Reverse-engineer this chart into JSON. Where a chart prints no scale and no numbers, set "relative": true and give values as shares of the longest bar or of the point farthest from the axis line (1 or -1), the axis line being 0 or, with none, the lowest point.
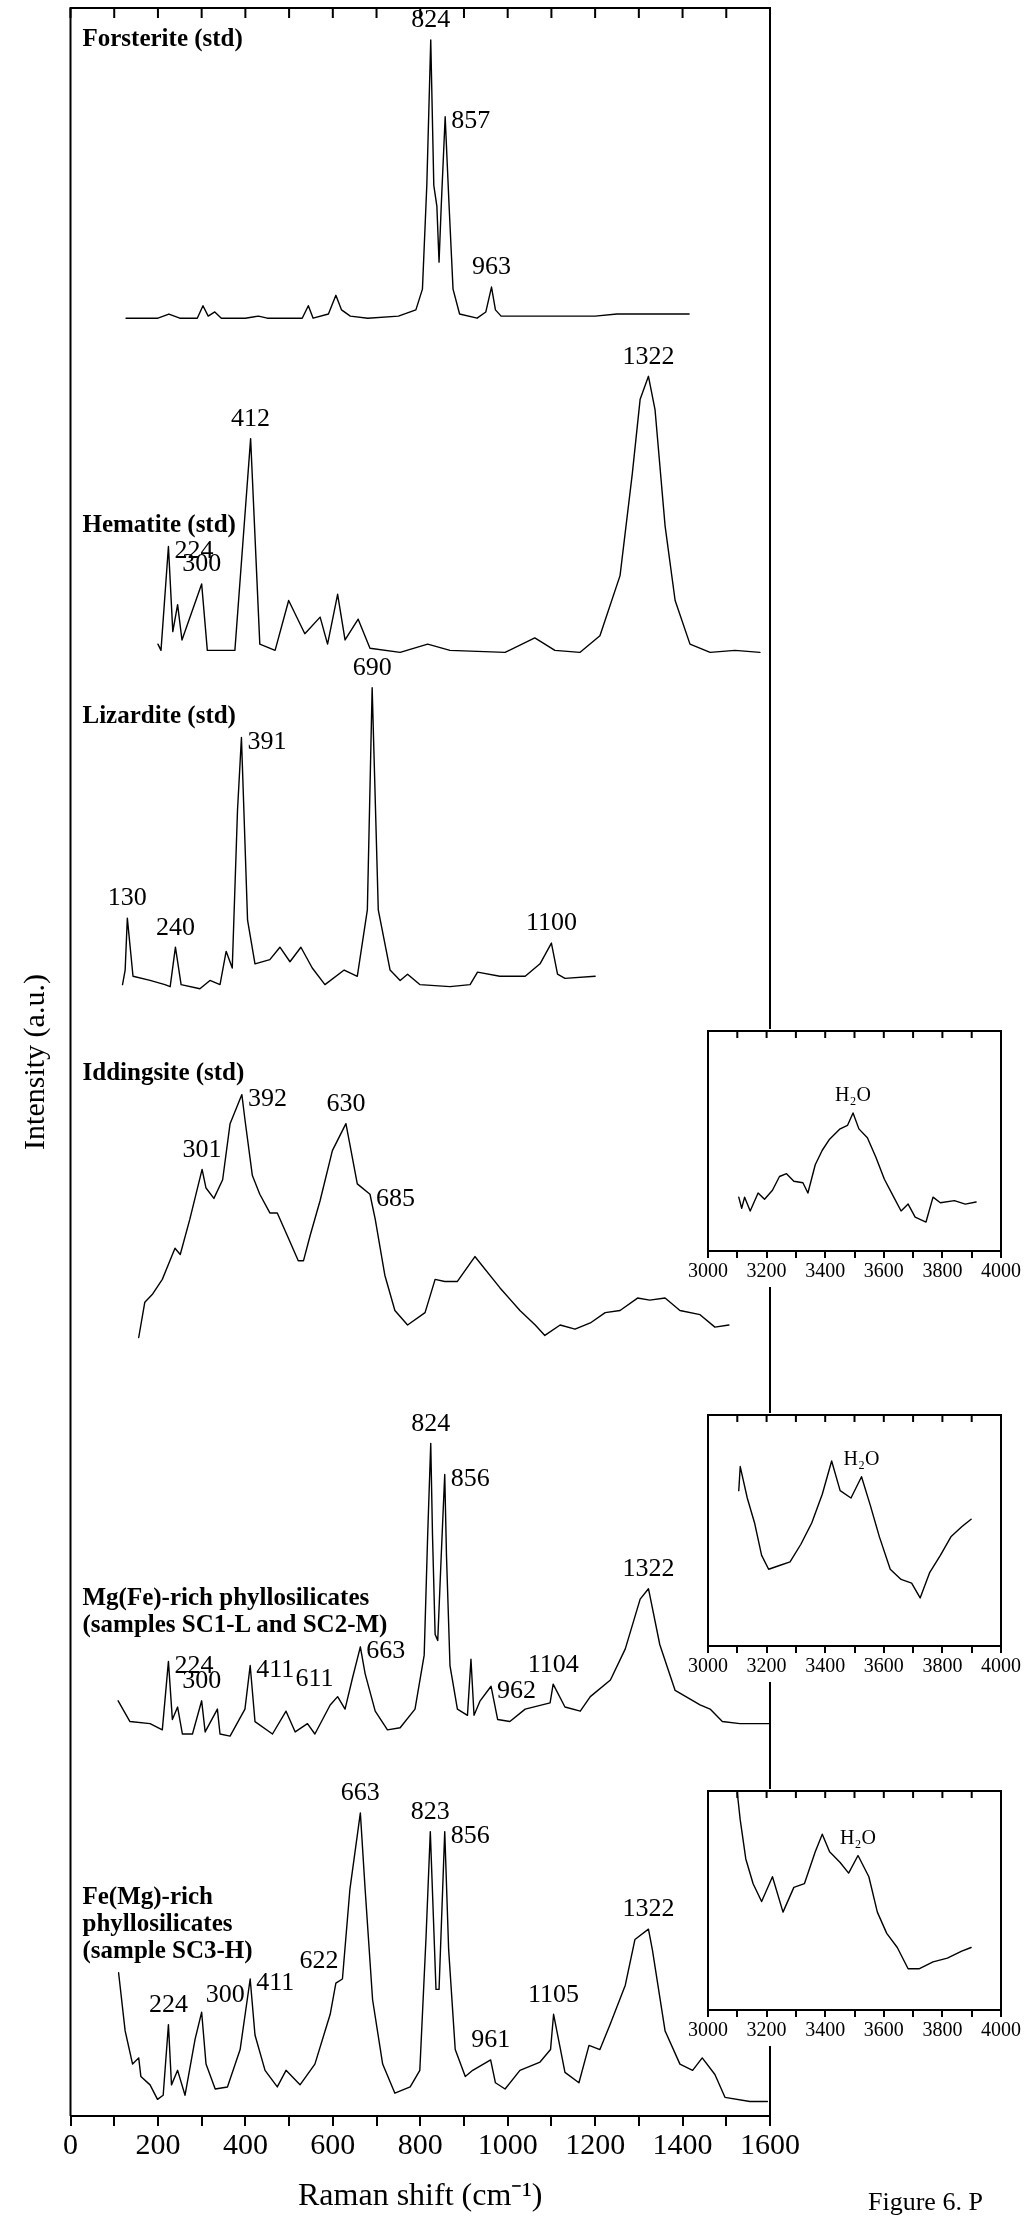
{
  "chart_data": [
    {
      "type": "line",
      "relative": true,
      "marker": "none",
      "xlabel": "Raman shift (cm⁻¹)",
      "ylabel": "Intensity (a.u.)",
      "xlim": [
        0,
        1600
      ],
      "xticks": [
        0,
        {
          "value": 100,
          "label": null
        },
        200,
        {
          "value": 300,
          "label": null
        },
        400,
        {
          "value": 500,
          "label": null
        },
        600,
        {
          "value": 700,
          "label": null
        },
        800,
        {
          "value": 900,
          "label": null
        },
        1000,
        {
          "value": 1100,
          "label": null
        },
        1200,
        {
          "value": 1300,
          "label": null
        },
        1400,
        {
          "value": 1500,
          "label": null
        },
        1600
      ],
      "series": [
        {
          "name": "Forsterite (std)",
          "color": "#000000",
          "x": [
            127,
            200,
            225,
            250,
            290,
            303,
            315,
            330,
            345,
            400,
            430,
            450,
            530,
            544,
            555,
            590,
            607,
            620,
            640,
            680,
            750,
            790,
            805,
            815,
            824,
            831,
            838,
            843,
            848,
            857,
            866,
            875,
            890,
            930,
            950,
            963,
            972,
            985,
            1000,
            1100,
            1200,
            1250,
            1300,
            1350,
            1415
          ],
          "values": [
            0.866,
            0.866,
            0.868,
            0.866,
            0.866,
            0.872,
            0.867,
            0.869,
            0.866,
            0.866,
            0.867,
            0.866,
            0.866,
            0.872,
            0.866,
            0.868,
            0.877,
            0.87,
            0.867,
            0.866,
            0.867,
            0.87,
            0.88,
            0.93,
            1,
            0.93,
            0.92,
            0.893,
            0.92,
            0.963,
            0.92,
            0.88,
            0.868,
            0.866,
            0.869,
            0.881,
            0.87,
            0.867,
            0.867,
            0.867,
            0.867,
            0.868,
            0.868,
            0.868,
            0.868
          ]
        },
        {
          "name": "Hematite (std)",
          "color": "#000000",
          "x": [
            200,
            207,
            224,
            234,
            245,
            255,
            300,
            313,
            376,
            412,
            433,
            468,
            499,
            536,
            571,
            588,
            611,
            628,
            658,
            685,
            754,
            817,
            868,
            994,
            1062,
            1108,
            1165,
            1211,
            1257,
            1285,
            1303,
            1322,
            1337,
            1360,
            1383,
            1417,
            1463,
            1520,
            1577
          ],
          "values": [
            0.709,
            0.706,
            0.756,
            0.715,
            0.728,
            0.711,
            0.738,
            0.706,
            0.706,
            0.808,
            0.709,
            0.706,
            0.73,
            0.714,
            0.722,
            0.709,
            0.733,
            0.711,
            0.721,
            0.707,
            0.705,
            0.709,
            0.706,
            0.705,
            0.712,
            0.706,
            0.705,
            0.713,
            0.742,
            0.791,
            0.827,
            0.838,
            0.822,
            0.766,
            0.73,
            0.709,
            0.705,
            0.706,
            0.705
          ]
        },
        {
          "name": "Lizardite (std)",
          "color": "#000000",
          "x": [
            119,
            125,
            130,
            143,
            182,
            216,
            228,
            240,
            253,
            296,
            319,
            342,
            356,
            370,
            382,
            391,
            405,
            422,
            456,
            479,
            502,
            527,
            553,
            582,
            626,
            656,
            679,
            690,
            704,
            731,
            754,
            771,
            799,
            868,
            914,
            931,
            982,
            1040,
            1074,
            1100,
            1114,
            1131,
            1200
          ],
          "values": [
            0.545,
            0.552,
            0.577,
            0.549,
            0.547,
            0.545,
            0.544,
            0.563,
            0.545,
            0.543,
            0.547,
            0.545,
            0.561,
            0.553,
            0.629,
            0.664,
            0.576,
            0.555,
            0.557,
            0.563,
            0.556,
            0.563,
            0.553,
            0.545,
            0.552,
            0.549,
            0.581,
            0.688,
            0.581,
            0.552,
            0.547,
            0.55,
            0.545,
            0.544,
            0.545,
            0.551,
            0.549,
            0.549,
            0.555,
            0.565,
            0.55,
            0.548,
            0.549
          ]
        },
        {
          "name": "Iddingsite (std)",
          "color": "#000000",
          "x": [
            156,
            170,
            188,
            210,
            239,
            251,
            273,
            301,
            310,
            328,
            348,
            365,
            392,
            399,
            416,
            433,
            456,
            473,
            496,
            521,
            533,
            548,
            571,
            599,
            630,
            639,
            656,
            685,
            697,
            719,
            742,
            771,
            811,
            834,
            856,
            885,
            925,
            982,
            1028,
            1063,
            1085,
            1120,
            1154,
            1189,
            1223,
            1257,
            1297,
            1325,
            1360,
            1394,
            1440,
            1474,
            1506
          ],
          "values": [
            0.375,
            0.392,
            0.396,
            0.403,
            0.418,
            0.415,
            0.432,
            0.456,
            0.447,
            0.442,
            0.451,
            0.478,
            0.492,
            0.48,
            0.453,
            0.444,
            0.435,
            0.435,
            0.424,
            0.412,
            0.412,
            0.424,
            0.441,
            0.465,
            0.478,
            0.468,
            0.449,
            0.444,
            0.432,
            0.405,
            0.388,
            0.381,
            0.387,
            0.403,
            0.402,
            0.402,
            0.414,
            0.399,
            0.388,
            0.381,
            0.376,
            0.381,
            0.379,
            0.382,
            0.387,
            0.388,
            0.394,
            0.393,
            0.394,
            0.388,
            0.386,
            0.38,
            0.381
          ]
        },
        {
          "name": "Mg(Fe)-rich phyllosilicates\n(samples SC1-L and SC2-M)",
          "color": "#000000",
          "x": [
            109,
            136,
            182,
            210,
            224,
            233,
            245,
            256,
            279,
            300,
            308,
            336,
            342,
            365,
            399,
            411,
            422,
            462,
            493,
            514,
            542,
            559,
            594,
            611,
            628,
            645,
            663,
            674,
            697,
            725,
            754,
            788,
            809,
            817,
            824,
            828,
            834,
            840,
            848,
            856,
            860,
            868,
            885,
            908,
            916,
            923,
            937,
            962,
            977,
            1005,
            1040,
            1097,
            1104,
            1131,
            1166,
            1189,
            1235,
            1269,
            1303,
            1322,
            1348,
            1383,
            1440,
            1463,
            1491,
            1531,
            1600
          ],
          "values": [
            0.2,
            0.19,
            0.189,
            0.186,
            0.219,
            0.191,
            0.197,
            0.184,
            0.184,
            0.2,
            0.185,
            0.196,
            0.184,
            0.183,
            0.196,
            0.217,
            0.19,
            0.184,
            0.195,
            0.185,
            0.189,
            0.184,
            0.198,
            0.202,
            0.196,
            0.211,
            0.226,
            0.213,
            0.195,
            0.186,
            0.187,
            0.196,
            0.222,
            0.28,
            0.324,
            0.28,
            0.232,
            0.229,
            0.27,
            0.309,
            0.27,
            0.217,
            0.196,
            0.193,
            0.22,
            0.193,
            0.2,
            0.207,
            0.191,
            0.19,
            0.196,
            0.199,
            0.208,
            0.197,
            0.195,
            0.202,
            0.21,
            0.225,
            0.249,
            0.254,
            0.227,
            0.205,
            0.198,
            0.196,
            0.19,
            0.189,
            0.189
          ]
        },
        {
          "name": "Fe(Mg)-rich\nphyllosilicates\n(sample SC3-H)",
          "color": "#000000",
          "x": [
            110,
            125,
            142,
            156,
            161,
            182,
            199,
            212,
            224,
            231,
            245,
            262,
            285,
            300,
            310,
            331,
            359,
            388,
            411,
            422,
            445,
            473,
            493,
            525,
            559,
            594,
            607,
            622,
            639,
            663,
            674,
            691,
            714,
            742,
            777,
            799,
            813,
            823,
            836,
            843,
            856,
            865,
            880,
            903,
            920,
            961,
            972,
            994,
            1028,
            1074,
            1098,
            1105,
            1131,
            1163,
            1186,
            1211,
            1234,
            1269,
            1291,
            1322,
            1331,
            1360,
            1394,
            1423,
            1445,
            1474,
            1497,
            1554,
            1594
          ],
          "values": [
            0.069,
            0.041,
            0.025,
            0.028,
            0.019,
            0.015,
            0.008,
            0.01,
            0.044,
            0.015,
            0.022,
            0.01,
            0.037,
            0.05,
            0.025,
            0.013,
            0.014,
            0.032,
            0.066,
            0.039,
            0.022,
            0.014,
            0.022,
            0.015,
            0.025,
            0.049,
            0.064,
            0.066,
            0.109,
            0.146,
            0.109,
            0.056,
            0.025,
            0.011,
            0.014,
            0.022,
            0.085,
            0.137,
            0.061,
            0.061,
            0.137,
            0.08,
            0.032,
            0.019,
            0.022,
            0.027,
            0.016,
            0.013,
            0.022,
            0.026,
            0.032,
            0.049,
            0.021,
            0.016,
            0.034,
            0.032,
            0.044,
            0.063,
            0.085,
            0.09,
            0.08,
            0.041,
            0.025,
            0.022,
            0.028,
            0.02,
            0.009,
            0.007,
            0.007
          ]
        }
      ],
      "annotations": [
        {
          "text": "824",
          "x": 824,
          "y": 1
        },
        {
          "text": "857",
          "x": 857,
          "y": 0.963
        },
        {
          "text": "963",
          "x": 963,
          "y": 0.881
        },
        {
          "text": "224",
          "x": 224,
          "y": 0.756
        },
        {
          "text": "300",
          "x": 300,
          "y": 0.738
        },
        {
          "text": "412",
          "x": 412,
          "y": 0.808
        },
        {
          "text": "1322",
          "x": 1322,
          "y": 0.838
        },
        {
          "text": "130",
          "x": 130,
          "y": 0.577
        },
        {
          "text": "240",
          "x": 240,
          "y": 0.563
        },
        {
          "text": "391",
          "x": 391,
          "y": 0.664
        },
        {
          "text": "690",
          "x": 690,
          "y": 0.688
        },
        {
          "text": "1100",
          "x": 1100,
          "y": 0.565
        },
        {
          "text": "301",
          "x": 301,
          "y": 0.456
        },
        {
          "text": "392",
          "x": 392,
          "y": 0.492
        },
        {
          "text": "630",
          "x": 630,
          "y": 0.478
        },
        {
          "text": "685",
          "x": 685,
          "y": 0.444
        },
        {
          "text": "224",
          "x": 224,
          "y": 0.219
        },
        {
          "text": "300",
          "x": 300,
          "y": 0.2
        },
        {
          "text": "411",
          "x": 411,
          "y": 0.217
        },
        {
          "text": "611",
          "x": 611,
          "y": 0.202
        },
        {
          "text": "663",
          "x": 663,
          "y": 0.226
        },
        {
          "text": "824",
          "x": 824,
          "y": 0.324
        },
        {
          "text": "856",
          "x": 856,
          "y": 0.309
        },
        {
          "text": "962",
          "x": 962,
          "y": 0.207
        },
        {
          "text": "1104",
          "x": 1104,
          "y": 0.208
        },
        {
          "text": "1322",
          "x": 1322,
          "y": 0.254
        },
        {
          "text": "224",
          "x": 224,
          "y": 0.044
        },
        {
          "text": "300",
          "x": 300,
          "y": 0.05
        },
        {
          "text": "411",
          "x": 411,
          "y": 0.066
        },
        {
          "text": "622",
          "x": 622,
          "y": 0.066
        },
        {
          "text": "663",
          "x": 663,
          "y": 0.146
        },
        {
          "text": "823",
          "x": 823,
          "y": 0.137
        },
        {
          "text": "856",
          "x": 856,
          "y": 0.137
        },
        {
          "text": "961",
          "x": 961,
          "y": 0.027
        },
        {
          "text": "1105",
          "x": 1105,
          "y": 0.049
        },
        {
          "text": "1322",
          "x": 1322,
          "y": 0.09
        },
        "Figure 6. P"
      ]
    },
    {
      "type": "line",
      "relative": true,
      "marker": "none",
      "xlim": [
        3000,
        4000
      ],
      "xticks": [
        3000,
        {
          "value": 3100,
          "label": null
        },
        3200,
        {
          "value": 3300,
          "label": null
        },
        3400,
        {
          "value": 3500,
          "label": null
        },
        3600,
        {
          "value": 3700,
          "label": null
        },
        3800,
        {
          "value": 3900,
          "label": null
        },
        4000
      ],
      "series": [
        {
          "color": "#000000",
          "x": [
            3105,
            3115,
            3125,
            3144,
            3171,
            3193,
            3220,
            3244,
            3268,
            3293,
            3324,
            3341,
            3366,
            3390,
            3415,
            3451,
            3476,
            3495,
            3515,
            3544,
            3573,
            3602,
            3634,
            3659,
            3683,
            3707,
            3744,
            3768,
            3793,
            3841,
            3878,
            3915
          ],
          "values": [
            0.39,
            0.31,
            0.39,
            0.29,
            0.42,
            0.375,
            0.44,
            0.54,
            0.56,
            0.505,
            0.495,
            0.42,
            0.625,
            0.73,
            0.81,
            0.885,
            0.91,
            1,
            0.885,
            0.82,
            0.68,
            0.52,
            0.39,
            0.29,
            0.34,
            0.245,
            0.21,
            0.39,
            0.35,
            0.365,
            0.34,
            0.355
          ]
        }
      ],
      "annotations": [
        {
          "text": "H₂O",
          "x": 3495,
          "y": 1
        }
      ]
    },
    {
      "type": "line",
      "relative": true,
      "marker": "none",
      "xlim": [
        3000,
        4000
      ],
      "xticks": [
        3000,
        {
          "value": 3100,
          "label": null
        },
        3200,
        {
          "value": 3300,
          "label": null
        },
        3400,
        {
          "value": 3500,
          "label": null
        },
        3600,
        {
          "value": 3700,
          "label": null
        },
        3800,
        {
          "value": 3900,
          "label": null
        },
        4000
      ],
      "series": [
        {
          "color": "#000000",
          "x": [
            3105,
            3110,
            3134,
            3159,
            3183,
            3207,
            3244,
            3280,
            3317,
            3354,
            3390,
            3422,
            3451,
            3488,
            3524,
            3554,
            3585,
            3622,
            3659,
            3695,
            3724,
            3756,
            3793,
            3829,
            3866,
            3898
          ],
          "values": [
            0.84,
            0.97,
            0.8,
            0.665,
            0.49,
            0.415,
            0.435,
            0.455,
            0.55,
            0.665,
            0.82,
            1,
            0.84,
            0.8,
            0.915,
            0.76,
            0.59,
            0.415,
            0.36,
            0.34,
            0.26,
            0.395,
            0.49,
            0.59,
            0.645,
            0.685
          ]
        }
      ],
      "annotations": [
        {
          "text": "H₂O",
          "x": 3524,
          "y": 0.915
        }
      ]
    },
    {
      "type": "line",
      "relative": true,
      "marker": "none",
      "xlim": [
        3000,
        4000
      ],
      "xticks": [
        3000,
        {
          "value": 3100,
          "label": null
        },
        3200,
        {
          "value": 3300,
          "label": null
        },
        3400,
        {
          "value": 3500,
          "label": null
        },
        3600,
        {
          "value": 3700,
          "label": null
        },
        3800,
        {
          "value": 3900,
          "label": null
        },
        4000
      ],
      "series": [
        {
          "color": "#000000",
          "x": [
            3100,
            3110,
            3129,
            3154,
            3183,
            3220,
            3256,
            3293,
            3329,
            3366,
            3390,
            3415,
            3451,
            3480,
            3512,
            3549,
            3578,
            3610,
            3646,
            3683,
            3720,
            3768,
            3817,
            3866,
            3898
          ],
          "values": [
            1,
            0.876,
            0.696,
            0.582,
            0.5,
            0.614,
            0.451,
            0.565,
            0.582,
            0.729,
            0.81,
            0.729,
            0.68,
            0.631,
            0.712,
            0.614,
            0.451,
            0.353,
            0.288,
            0.19,
            0.19,
            0.222,
            0.239,
            0.271,
            0.288
          ]
        }
      ],
      "annotations": [
        {
          "text": "H₂O",
          "x": 3512,
          "y": 0.712
        }
      ]
    }
  ]
}
